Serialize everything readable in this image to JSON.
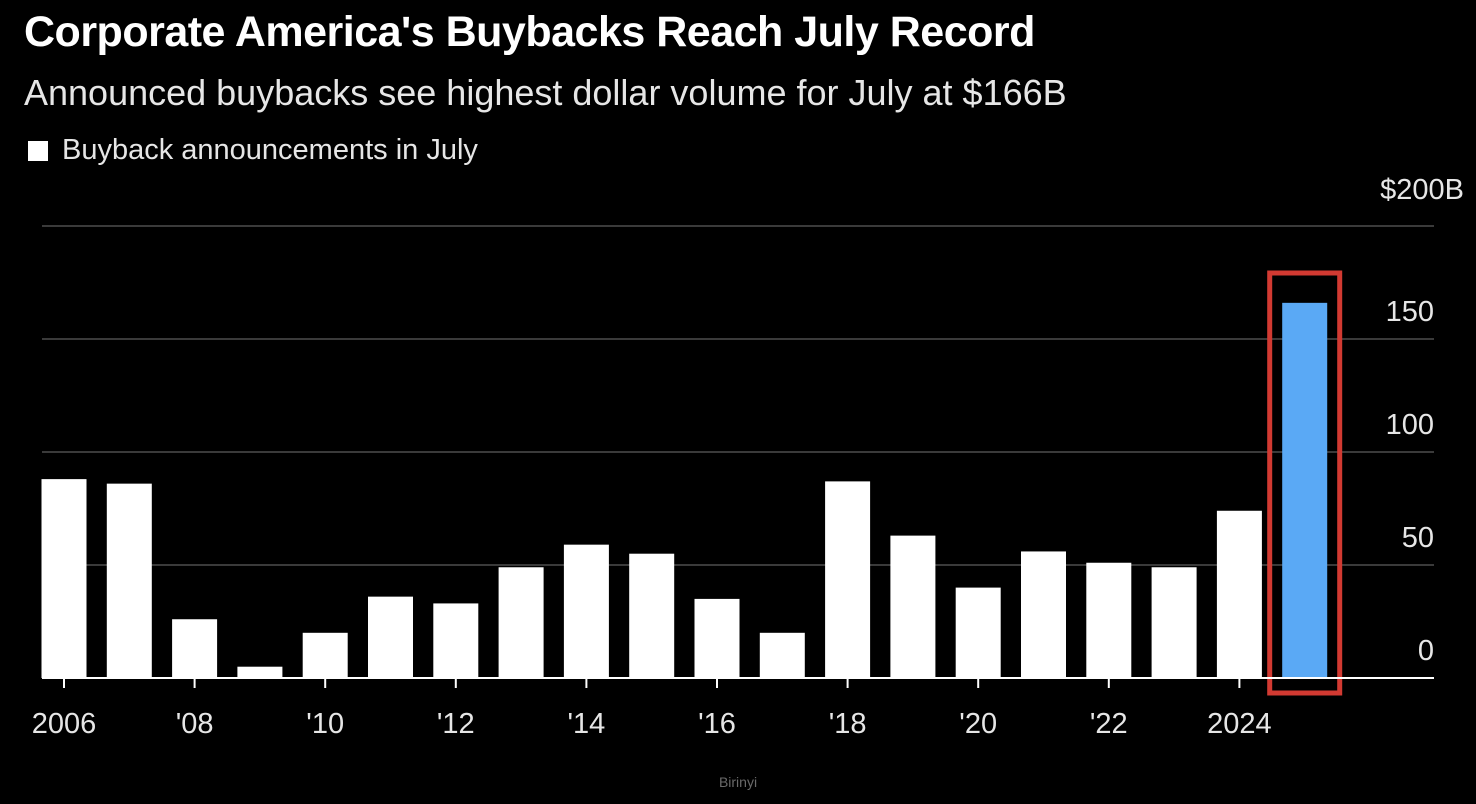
{
  "header": {
    "title": "Corporate America's Buybacks Reach July Record",
    "subtitle": "Announced buybacks see highest dollar volume for July at $166B"
  },
  "legend": {
    "label": "Buyback announcements in July"
  },
  "source": "Birinyi",
  "colors": {
    "background": "#000000",
    "bar": "#ffffff",
    "highlight_bar": "#5aa9f5",
    "highlight_box": "#d23a32",
    "gridline": "#3a3a3a"
  },
  "chart_data": {
    "type": "bar",
    "title": "Corporate America's Buybacks Reach July Record",
    "subtitle": "Announced buybacks see highest dollar volume for July at $166B",
    "xlabel": "",
    "ylabel": "",
    "y_unit_label": "$200B",
    "ylim": [
      0,
      200
    ],
    "y_ticks": [
      0,
      50,
      100,
      150,
      200
    ],
    "y_tick_labels": [
      "0",
      "50",
      "100",
      "150",
      "$200B"
    ],
    "grid": true,
    "y_axis_side": "right",
    "legend_placement": "top-left",
    "categories": [
      "2006",
      "2007",
      "2008",
      "2009",
      "2010",
      "2011",
      "2012",
      "2013",
      "2014",
      "2015",
      "2016",
      "2017",
      "2018",
      "2019",
      "2020",
      "2021",
      "2022",
      "2023",
      "2024",
      "2025"
    ],
    "x_tick_labels": [
      {
        "category": "2006",
        "label": "2006"
      },
      {
        "category": "2008",
        "label": "'08"
      },
      {
        "category": "2010",
        "label": "'10"
      },
      {
        "category": "2012",
        "label": "'12"
      },
      {
        "category": "2014",
        "label": "'14"
      },
      {
        "category": "2016",
        "label": "'16"
      },
      {
        "category": "2018",
        "label": "'18"
      },
      {
        "category": "2020",
        "label": "'20"
      },
      {
        "category": "2022",
        "label": "'22"
      },
      {
        "category": "2024",
        "label": "2024"
      }
    ],
    "series": [
      {
        "name": "Buyback announcements in July",
        "values": [
          88,
          86,
          26,
          5,
          20,
          36,
          33,
          49,
          59,
          55,
          35,
          20,
          87,
          63,
          40,
          56,
          51,
          49,
          74,
          166
        ]
      }
    ],
    "highlight_category": "2025"
  }
}
